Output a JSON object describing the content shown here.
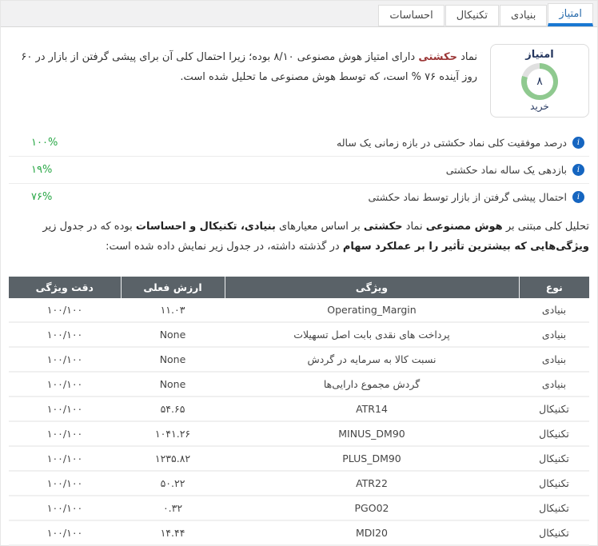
{
  "colors": {
    "accent_blue": "#1a78d2",
    "tab_text_active": "#2e6fae",
    "green_value": "#28a745",
    "symbol_red": "#9b3535",
    "table_header_bg": "#5a6268",
    "ring_green": "#8fc98f",
    "ring_rest": "#e0e0e0",
    "navy_text": "#24365e"
  },
  "tabs": [
    {
      "label": "امتیاز",
      "active": true
    },
    {
      "label": "بنیادی",
      "active": false
    },
    {
      "label": "تکنیکال",
      "active": false
    },
    {
      "label": "احساسات",
      "active": false
    }
  ],
  "score_box": {
    "title": "امتیاز",
    "score_display": "۸",
    "score_percent": 80,
    "action_label": "خرید"
  },
  "intro": {
    "segments": [
      {
        "t": "نماد "
      },
      {
        "t": "حکشتی",
        "bold": true,
        "red": true
      },
      {
        "t": " دارای امتیاز هوش مصنوعی ۸/۱۰ بوده؛ زیرا احتمال کلی آن برای پیشی گرفتن از بازار در ۶۰ روز آینده ۷۶ % است، که توسط هوش مصنوعی ما تحلیل شده است."
      }
    ]
  },
  "metrics": [
    {
      "label": "درصد موفقیت کلی نماد حکشتی در بازه زمانی یک ساله",
      "value": "۱۰۰%"
    },
    {
      "label": "بازدهی یک ساله نماد حکشتی",
      "value": "۱۹%"
    },
    {
      "label": "احتمال پیشی گرفتن از بازار توسط نماد حکشتی",
      "value": "۷۶%"
    }
  ],
  "analysis": {
    "segments": [
      {
        "t": "تحلیل کلی مبتنی بر "
      },
      {
        "t": "هوش مصنوعی",
        "bold": true
      },
      {
        "t": " نماد "
      },
      {
        "t": "حکشتی",
        "bold": true
      },
      {
        "t": " بر اساس معیارهای "
      },
      {
        "t": "بنیادی، تکنیکال و احساسات",
        "bold": true
      },
      {
        "t": " بوده که در جدول زیر "
      },
      {
        "t": "ویژگی‌هایی که بیشترین تأثیر را بر عملکرد سهام",
        "bold": true
      },
      {
        "t": " در گذشته داشته، در جدول زیر نمایش داده شده است:"
      }
    ]
  },
  "table": {
    "headers": {
      "type": "نوع",
      "feature": "ویژگی",
      "value": "ارزش فعلی",
      "accuracy": "دقت ویژگی"
    },
    "rows": [
      {
        "type": "بنیادی",
        "feature": "Operating_Margin",
        "value": "۱۱.۰۳",
        "accuracy": "۱۰۰/۱۰۰"
      },
      {
        "type": "بنیادی",
        "feature": "پرداخت های نقدی بابت اصل تسهیلات",
        "value": "None",
        "accuracy": "۱۰۰/۱۰۰"
      },
      {
        "type": "بنیادی",
        "feature": "نسبت کالا به سرمایه در گردش",
        "value": "None",
        "accuracy": "۱۰۰/۱۰۰"
      },
      {
        "type": "بنیادی",
        "feature": "گردش مجموع دارایی‌ها",
        "value": "None",
        "accuracy": "۱۰۰/۱۰۰"
      },
      {
        "type": "تکنیکال",
        "feature": "ATR14",
        "value": "۵۴.۶۵",
        "accuracy": "۱۰۰/۱۰۰"
      },
      {
        "type": "تکنیکال",
        "feature": "MINUS_DM90",
        "value": "۱۰۴۱.۲۶",
        "accuracy": "۱۰۰/۱۰۰"
      },
      {
        "type": "تکنیکال",
        "feature": "PLUS_DM90",
        "value": "۱۲۳۵.۸۲",
        "accuracy": "۱۰۰/۱۰۰"
      },
      {
        "type": "تکنیکال",
        "feature": "ATR22",
        "value": "۵۰.۲۲",
        "accuracy": "۱۰۰/۱۰۰"
      },
      {
        "type": "تکنیکال",
        "feature": "PGO02",
        "value": "۰.۳۲",
        "accuracy": "۱۰۰/۱۰۰"
      },
      {
        "type": "تکنیکال",
        "feature": "MDI20",
        "value": "۱۴.۴۴",
        "accuracy": "۱۰۰/۱۰۰"
      }
    ]
  }
}
